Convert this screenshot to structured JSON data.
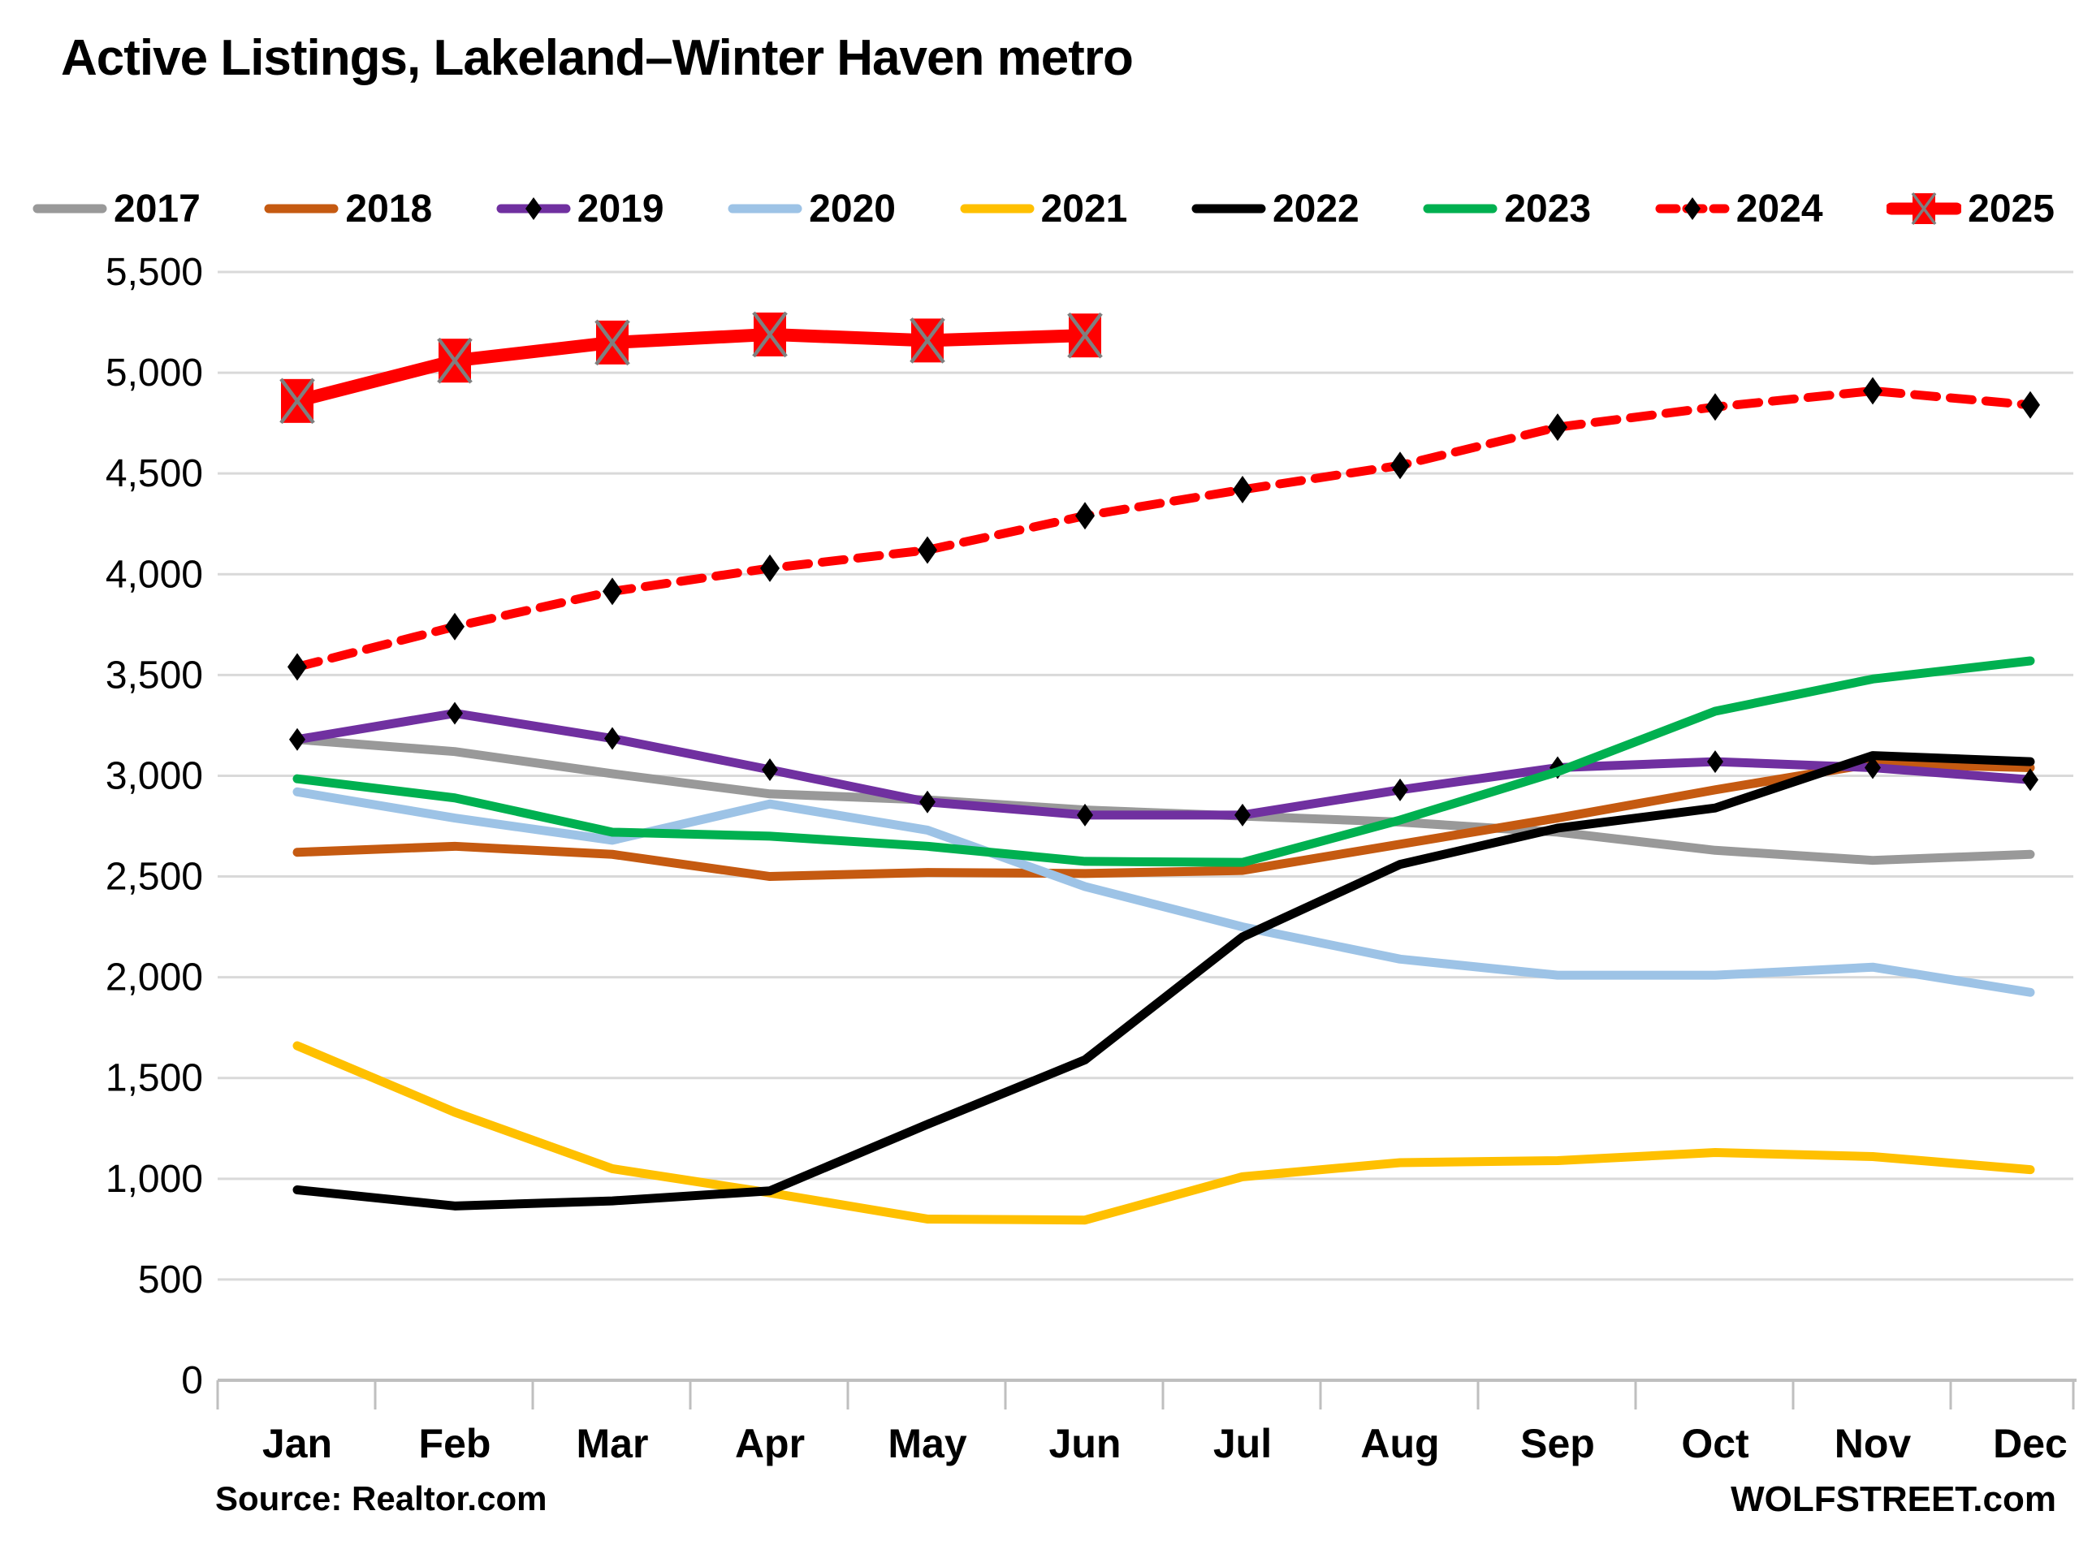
{
  "title": "Active Listings, Lakeland–Winter Haven metro",
  "source_note": "Source: Realtor.com",
  "branding": "WOLFSTREET.com",
  "colors": {
    "gridline": "#D9D9D9",
    "axis_line": "#BFBFBF",
    "tick": "#BFBFBF",
    "text": "#000000",
    "marker_x_stroke": "#7F7F7F"
  },
  "chart_data": {
    "type": "line",
    "title": "Active Listings, Lakeland–Winter Haven metro",
    "categories": [
      "Jan",
      "Feb",
      "Mar",
      "Apr",
      "May",
      "Jun",
      "Jul",
      "Aug",
      "Sep",
      "Oct",
      "Nov",
      "Dec"
    ],
    "series": [
      {
        "name": "2017",
        "color": "#999999",
        "style": "solid",
        "marker": "none",
        "values": [
          3180,
          3120,
          3010,
          2910,
          2880,
          2830,
          2800,
          2770,
          2720,
          2630,
          2580,
          2610
        ]
      },
      {
        "name": "2018",
        "color": "#C55A11",
        "style": "solid",
        "marker": "none",
        "values": [
          2620,
          2650,
          2610,
          2500,
          2520,
          2515,
          2530,
          2660,
          2790,
          2930,
          3060,
          3040
        ]
      },
      {
        "name": "2019",
        "color": "#7030A0",
        "style": "solid",
        "marker": "diamond",
        "marker_color": "#000000",
        "values": [
          3180,
          3310,
          3185,
          3030,
          2870,
          2805,
          2805,
          2930,
          3040,
          3070,
          3040,
          2980
        ]
      },
      {
        "name": "2020",
        "color": "#9DC3E6",
        "style": "solid",
        "marker": "none",
        "values": [
          2920,
          2790,
          2680,
          2860,
          2730,
          2450,
          2250,
          2090,
          2010,
          2010,
          2050,
          1925
        ]
      },
      {
        "name": "2021",
        "color": "#FFC000",
        "style": "solid",
        "marker": "none",
        "values": [
          1660,
          1330,
          1050,
          930,
          800,
          795,
          1010,
          1080,
          1090,
          1130,
          1110,
          1045
        ]
      },
      {
        "name": "2022",
        "color": "#000000",
        "style": "solid",
        "marker": "none",
        "values": [
          945,
          865,
          890,
          940,
          1270,
          1590,
          2200,
          2560,
          2740,
          2840,
          3100,
          3070
        ]
      },
      {
        "name": "2023",
        "color": "#00B050",
        "style": "solid",
        "marker": "none",
        "values": [
          2985,
          2890,
          2720,
          2700,
          2650,
          2575,
          2570,
          2780,
          3020,
          3320,
          3480,
          3570
        ]
      },
      {
        "name": "2024",
        "color": "#FF0000",
        "style": "dashed",
        "marker": "diamond",
        "marker_color": "#000000",
        "values": [
          3540,
          3740,
          3915,
          4030,
          4120,
          4290,
          4420,
          4540,
          4730,
          4830,
          4910,
          4840
        ]
      },
      {
        "name": "2025",
        "color": "#FF0000",
        "style": "solid-thick",
        "marker": "square-x",
        "marker_color": "#FF0000",
        "values": [
          4860,
          5060,
          5150,
          5190,
          5160,
          5185,
          null,
          null,
          null,
          null,
          null,
          null
        ]
      }
    ],
    "ylim": [
      0,
      5500
    ],
    "ytick_step": 500,
    "grid": "horizontal",
    "legend_position": "top",
    "xlabel": "",
    "ylabel": ""
  }
}
